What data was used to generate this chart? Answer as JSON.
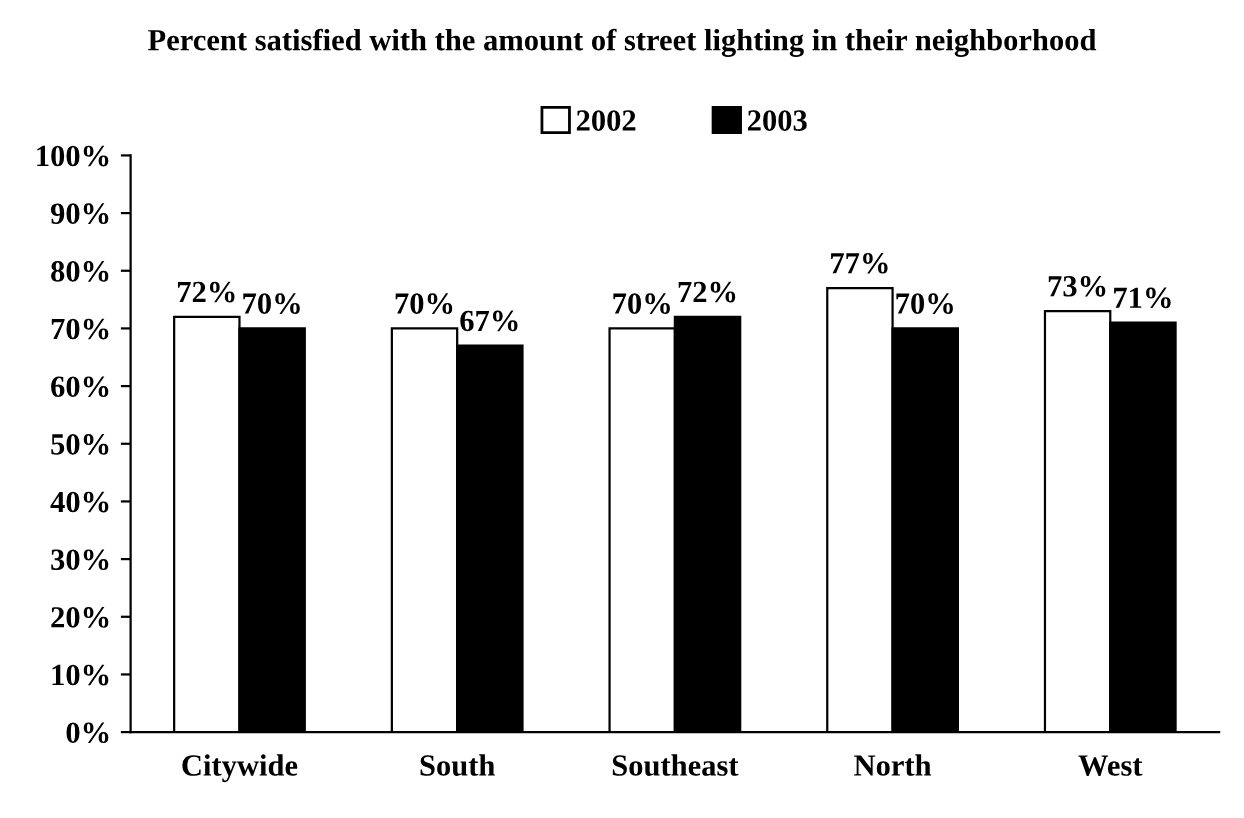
{
  "chart_data": {
    "type": "bar",
    "title": "Percent satisfied with the amount of street lighting in their neighborhood",
    "categories": [
      "Citywide",
      "South",
      "Southeast",
      "North",
      "West"
    ],
    "series": [
      {
        "name": "2002",
        "color": "#ffffff",
        "values": [
          72,
          70,
          70,
          77,
          73
        ],
        "value_labels": [
          "72%",
          "70%",
          "70%",
          "77%",
          "73%"
        ]
      },
      {
        "name": "2003",
        "color": "#000000",
        "values": [
          70,
          67,
          72,
          70,
          71
        ],
        "value_labels": [
          "70%",
          "67%",
          "72%",
          "70%",
          "71%"
        ]
      }
    ],
    "ylim": [
      0,
      100
    ],
    "yticks": [
      {
        "value": 0,
        "label": "0%"
      },
      {
        "value": 10,
        "label": "10%"
      },
      {
        "value": 20,
        "label": "20%"
      },
      {
        "value": 30,
        "label": "30%"
      },
      {
        "value": 40,
        "label": "40%"
      },
      {
        "value": 50,
        "label": "50%"
      },
      {
        "value": 60,
        "label": "60%"
      },
      {
        "value": 70,
        "label": "70%"
      },
      {
        "value": 80,
        "label": "80%"
      },
      {
        "value": 90,
        "label": "90%"
      },
      {
        "value": 100,
        "label": "100%"
      }
    ],
    "legend": "top",
    "grid": false
  }
}
